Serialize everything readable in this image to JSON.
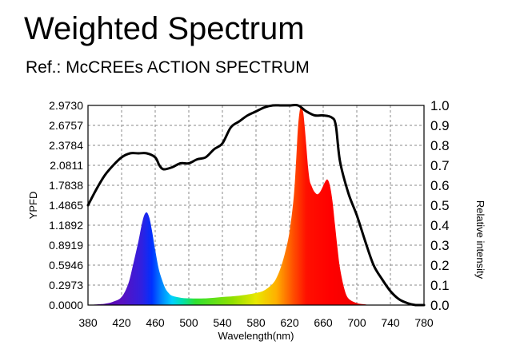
{
  "title": "Weighted Spectrum",
  "subtitle": "Ref.: McCREEs ACTION SPECTRUM",
  "chart_data": {
    "type": "area",
    "xlabel": "Wavelength(nm)",
    "ylabel": "YPFD",
    "y2label": "Relative intensity",
    "xlim": [
      380,
      780
    ],
    "ylim": [
      0,
      2.973
    ],
    "y2lim": [
      0,
      1.0
    ],
    "grid": true,
    "x_ticks": [
      "380",
      "420",
      "460",
      "500",
      "540",
      "580",
      "620",
      "660",
      "700",
      "740",
      "780"
    ],
    "y_ticks": [
      "0.0000",
      "0.2973",
      "0.5946",
      "0.8919",
      "1.1892",
      "1.4865",
      "1.7838",
      "2.0811",
      "2.3784",
      "2.6757",
      "2.9730"
    ],
    "y2_ticks": [
      "0.0",
      "0.1",
      "0.2",
      "0.3",
      "0.4",
      "0.5",
      "0.6",
      "0.7",
      "0.8",
      "0.9",
      "1.0"
    ],
    "series": [
      {
        "name": "",
        "axis": "left",
        "style": "filled-spectrum",
        "x": [
          380,
          400,
          410,
          420,
          428,
          434,
          440,
          444,
          447,
          450,
          453,
          456,
          460,
          464,
          468,
          472,
          476,
          480,
          490,
          500,
          520,
          540,
          560,
          580,
          590,
          600,
          605,
          610,
          615,
          620,
          625,
          628,
          630,
          633,
          636,
          638,
          640,
          642,
          644,
          646,
          648,
          650,
          653,
          656,
          659,
          662,
          665,
          668,
          671,
          674,
          677,
          680,
          685,
          690,
          700,
          710,
          720,
          780
        ],
        "values": [
          0,
          0.02,
          0.05,
          0.12,
          0.32,
          0.62,
          0.95,
          1.2,
          1.34,
          1.38,
          1.3,
          1.12,
          0.82,
          0.55,
          0.38,
          0.25,
          0.18,
          0.14,
          0.11,
          0.1,
          0.1,
          0.12,
          0.14,
          0.18,
          0.22,
          0.32,
          0.42,
          0.58,
          0.8,
          1.1,
          1.62,
          2.2,
          2.65,
          2.95,
          2.88,
          2.65,
          2.35,
          2.05,
          1.85,
          1.78,
          1.72,
          1.68,
          1.65,
          1.68,
          1.75,
          1.83,
          1.87,
          1.78,
          1.55,
          1.2,
          0.85,
          0.55,
          0.25,
          0.1,
          0.03,
          0.01,
          0,
          0
        ]
      },
      {
        "name": "",
        "axis": "right",
        "style": "line",
        "x": [
          380,
          390,
          400,
          410,
          420,
          430,
          440,
          450,
          460,
          465,
          470,
          480,
          490,
          500,
          510,
          520,
          530,
          540,
          550,
          560,
          570,
          580,
          590,
          600,
          610,
          620,
          630,
          640,
          650,
          660,
          670,
          675,
          680,
          690,
          700,
          710,
          720,
          730,
          740,
          750,
          760,
          770,
          780
        ],
        "values": [
          0.5,
          0.58,
          0.65,
          0.7,
          0.74,
          0.76,
          0.76,
          0.76,
          0.74,
          0.7,
          0.68,
          0.69,
          0.71,
          0.71,
          0.73,
          0.74,
          0.78,
          0.81,
          0.89,
          0.92,
          0.95,
          0.97,
          0.99,
          1.0,
          1.0,
          1.0,
          1.0,
          0.97,
          0.95,
          0.95,
          0.94,
          0.9,
          0.72,
          0.56,
          0.45,
          0.32,
          0.2,
          0.13,
          0.07,
          0.03,
          0.01,
          0,
          0
        ]
      }
    ]
  }
}
